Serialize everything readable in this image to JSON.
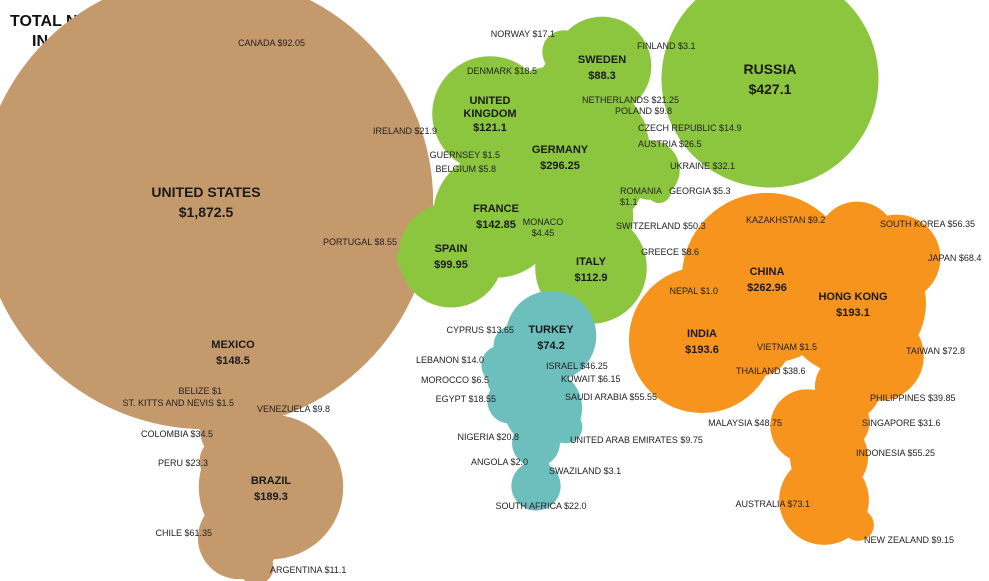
{
  "chart_data": {
    "type": "bubble",
    "title_lines": [
      "TOTAL NET WORTH",
      "IN $BILLIONS"
    ],
    "regions": [
      {
        "name": "americas",
        "color": "#c49a6c"
      },
      {
        "name": "europe",
        "color": "#8cc63f"
      },
      {
        "name": "middle-east-africa",
        "color": "#6cbfbd"
      },
      {
        "name": "asia-pacific",
        "color": "#f7941d"
      }
    ],
    "countries": [
      {
        "name": "CANADA",
        "value": 92.05,
        "text": "CANADA $92.05",
        "region": "americas"
      },
      {
        "name": "UNITED STATES",
        "value": 1872.5,
        "text": "$1,872.5",
        "region": "americas"
      },
      {
        "name": "MEXICO",
        "value": 148.5,
        "text": "$148.5",
        "region": "americas"
      },
      {
        "name": "BELIZE",
        "value": 1,
        "text": "BELIZE $1",
        "region": "americas"
      },
      {
        "name": "ST. KITTS AND NEVIS",
        "value": 1.5,
        "text": "ST. KITTS AND NEVIS $1.5",
        "region": "americas"
      },
      {
        "name": "VENEZUELA",
        "value": 9.8,
        "text": "VENEZUELA $9.8",
        "region": "americas"
      },
      {
        "name": "COLOMBIA",
        "value": 34.5,
        "text": "COLOMBIA $34.5",
        "region": "americas"
      },
      {
        "name": "PERU",
        "value": 23.3,
        "text": "PERU $23.3",
        "region": "americas"
      },
      {
        "name": "BRAZIL",
        "value": 189.3,
        "text": "$189.3",
        "region": "americas"
      },
      {
        "name": "CHILE",
        "value": 61.35,
        "text": "CHILE $61.35",
        "region": "americas"
      },
      {
        "name": "ARGENTINA",
        "value": 11.1,
        "text": "ARGENTINA $11.1",
        "region": "americas"
      },
      {
        "name": "NORWAY",
        "value": 17.1,
        "text": "NORWAY $17.1",
        "region": "europe"
      },
      {
        "name": "SWEDEN",
        "value": 88.3,
        "text": "$88.3",
        "region": "europe"
      },
      {
        "name": "FINLAND",
        "value": 3.1,
        "text": "FINLAND $3.1",
        "region": "europe"
      },
      {
        "name": "DENMARK",
        "value": 18.5,
        "text": "DENMARK $18.5",
        "region": "europe"
      },
      {
        "name": "NETHERLANDS",
        "value": 21.25,
        "text": "NETHERLANDS $21.25",
        "region": "europe"
      },
      {
        "name": "UNITED KINGDOM",
        "value": 121.1,
        "text": "$121.1",
        "region": "europe"
      },
      {
        "name": "POLAND",
        "value": 9.8,
        "text": "POLAND $9.8",
        "region": "europe"
      },
      {
        "name": "IRELAND",
        "value": 21.9,
        "text": "IRELAND $21.9",
        "region": "europe"
      },
      {
        "name": "CZECH REPUBLIC",
        "value": 14.9,
        "text": "CZECH REPUBLIC $14.9",
        "region": "europe"
      },
      {
        "name": "GERMANY",
        "value": 296.25,
        "text": "$296.25",
        "region": "europe"
      },
      {
        "name": "AUSTRIA",
        "value": 26.5,
        "text": "AUSTRIA $26.5",
        "region": "europe"
      },
      {
        "name": "GUERNSEY",
        "value": 1.5,
        "text": "GUERNSEY $1.5",
        "region": "europe"
      },
      {
        "name": "BELGIUM",
        "value": 5.8,
        "text": "BELGIUM $5.8",
        "region": "europe"
      },
      {
        "name": "UKRAINE",
        "value": 32.1,
        "text": "UKRAINE $32.1",
        "region": "europe"
      },
      {
        "name": "GEORGIA",
        "value": 5.3,
        "text": "GEORGIA $5.3",
        "region": "europe"
      },
      {
        "name": "ROMANIA",
        "value": 1.1,
        "text": "ROMANIA $1.1",
        "region": "europe"
      },
      {
        "name": "FRANCE",
        "value": 142.85,
        "text": "$142.85",
        "region": "europe"
      },
      {
        "name": "MONACO",
        "value": 4.45,
        "text": "MONACO $4.45",
        "region": "europe"
      },
      {
        "name": "SWITZERLAND",
        "value": 50.3,
        "text": "SWITZERLAND $50.3",
        "region": "europe"
      },
      {
        "name": "PORTUGAL",
        "value": 8.55,
        "text": "PORTUGAL $8.55",
        "region": "europe"
      },
      {
        "name": "SPAIN",
        "value": 99.95,
        "text": "$99.95",
        "region": "europe"
      },
      {
        "name": "ITALY",
        "value": 112.9,
        "text": "$112.9",
        "region": "europe"
      },
      {
        "name": "GREECE",
        "value": 8.6,
        "text": "GREECE $8.6",
        "region": "europe"
      },
      {
        "name": "RUSSIA",
        "value": 427.1,
        "text": "$427.1",
        "region": "europe"
      },
      {
        "name": "CYPRUS",
        "value": 13.65,
        "text": "CYPRUS $13.65",
        "region": "middle-east-africa"
      },
      {
        "name": "TURKEY",
        "value": 74.2,
        "text": "$74.2",
        "region": "middle-east-africa"
      },
      {
        "name": "LEBANON",
        "value": 14.0,
        "text": "LEBANON $14.0",
        "region": "middle-east-africa"
      },
      {
        "name": "ISRAEL",
        "value": 46.25,
        "text": "ISRAEL $46.25",
        "region": "middle-east-africa"
      },
      {
        "name": "MOROCCO",
        "value": 6.5,
        "text": "MOROCCO $6.5",
        "region": "middle-east-africa"
      },
      {
        "name": "KUWAIT",
        "value": 6.15,
        "text": "KUWAIT $6.15",
        "region": "middle-east-africa"
      },
      {
        "name": "EGYPT",
        "value": 18.55,
        "text": "EGYPT $18.55",
        "region": "middle-east-africa"
      },
      {
        "name": "SAUDI ARABIA",
        "value": 55.55,
        "text": "SAUDI ARABIA $55.55",
        "region": "middle-east-africa"
      },
      {
        "name": "NIGERIA",
        "value": 20.8,
        "text": "NIGERIA $20.8",
        "region": "middle-east-africa"
      },
      {
        "name": "UNITED ARAB EMIRATES",
        "value": 9.75,
        "text": "UNITED ARAB EMIRATES $9.75",
        "region": "middle-east-africa"
      },
      {
        "name": "ANGOLA",
        "value": 2.0,
        "text": "ANGOLA $2.0",
        "region": "middle-east-africa"
      },
      {
        "name": "SWAZILAND",
        "value": 3.1,
        "text": "SWAZILAND $3.1",
        "region": "middle-east-africa"
      },
      {
        "name": "SOUTH AFRICA",
        "value": 22.0,
        "text": "SOUTH AFRICA $22.0",
        "region": "middle-east-africa"
      },
      {
        "name": "KAZAKHSTAN",
        "value": 9.2,
        "text": "KAZAKHSTAN $9.2",
        "region": "asia-pacific"
      },
      {
        "name": "SOUTH KOREA",
        "value": 56.35,
        "text": "SOUTH KOREA $56.35",
        "region": "asia-pacific"
      },
      {
        "name": "CHINA",
        "value": 262.96,
        "text": "$262.96",
        "region": "asia-pacific"
      },
      {
        "name": "JAPAN",
        "value": 68.4,
        "text": "JAPAN $68.4",
        "region": "asia-pacific"
      },
      {
        "name": "NEPAL",
        "value": 1.0,
        "text": "NEPAL $1.0",
        "region": "asia-pacific"
      },
      {
        "name": "HONG KONG",
        "value": 193.1,
        "text": "$193.1",
        "region": "asia-pacific"
      },
      {
        "name": "INDIA",
        "value": 193.6,
        "text": "$193.6",
        "region": "asia-pacific"
      },
      {
        "name": "VIETNAM",
        "value": 1.5,
        "text": "VIETNAM $1.5",
        "region": "asia-pacific"
      },
      {
        "name": "TAIWAN",
        "value": 72.8,
        "text": "TAIWAN $72.8",
        "region": "asia-pacific"
      },
      {
        "name": "THAILAND",
        "value": 38.6,
        "text": "THAILAND $38.6",
        "region": "asia-pacific"
      },
      {
        "name": "PHILIPPINES",
        "value": 39.85,
        "text": "PHILIPPINES $39.85",
        "region": "asia-pacific"
      },
      {
        "name": "MALAYSIA",
        "value": 48.75,
        "text": "MALAYSIA $48.75",
        "region": "asia-pacific"
      },
      {
        "name": "SINGAPORE",
        "value": 31.6,
        "text": "SINGAPORE $31.6",
        "region": "asia-pacific"
      },
      {
        "name": "INDONESIA",
        "value": 55.25,
        "text": "INDONESIA $55.25",
        "region": "asia-pacific"
      },
      {
        "name": "AUSTRALIA",
        "value": 73.1,
        "text": "AUSTRALIA $73.1",
        "region": "asia-pacific"
      },
      {
        "name": "NEW ZEALAND",
        "value": 9.15,
        "text": "NEW ZEALAND $9.15",
        "region": "asia-pacific"
      }
    ]
  }
}
